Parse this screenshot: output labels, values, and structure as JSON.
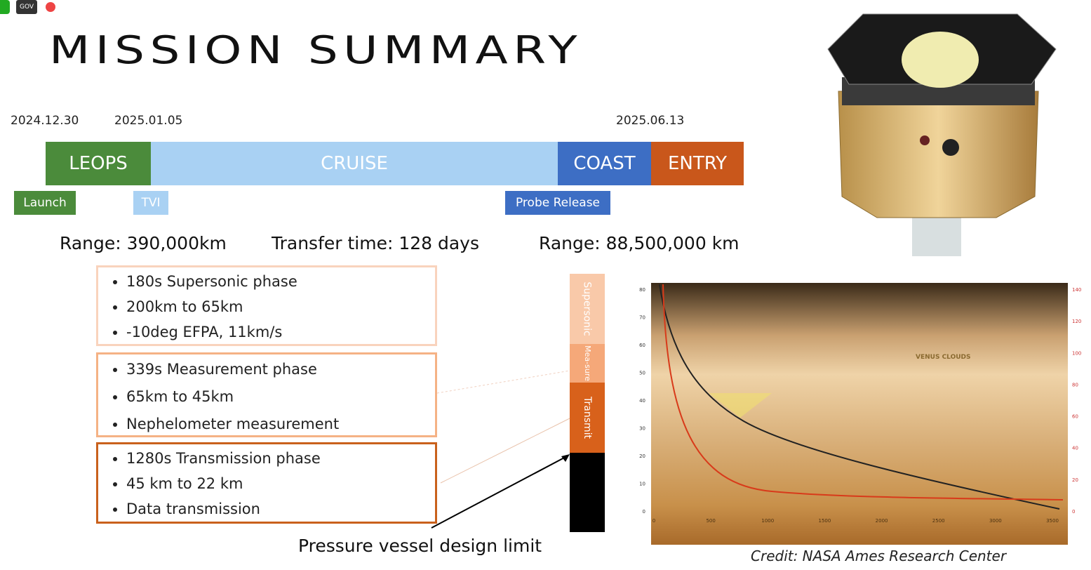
{
  "header": {
    "badge": "GOV",
    "title": "MISSION SUMMARY"
  },
  "timeline": {
    "dates": [
      "2024.12.30",
      "2025.01.05",
      "2025.06.13"
    ],
    "phases": [
      "LEOPS",
      "CRUISE",
      "COAST",
      "ENTRY"
    ],
    "events": [
      "Launch",
      "TVI",
      "Probe Release"
    ],
    "stats": [
      "Range: 390,000km",
      "Transfer time: 128 days",
      "Range: 88,500,000 km"
    ]
  },
  "entry_phases": [
    {
      "items": [
        "180s Supersonic phase",
        "200km to 65km",
        "-10deg EFPA, 11km/s"
      ]
    },
    {
      "items": [
        "339s Measurement phase",
        "65km to 45km",
        "Nephelometer measurement"
      ]
    },
    {
      "items": [
        "1280s Transmission phase",
        "45 km to 22 km",
        "Data transmission"
      ]
    }
  ],
  "phase_column": [
    "Supersonic",
    "Mea-sure",
    "Transmit"
  ],
  "descent_plot": {
    "cloud_label": "VENUS CLOUDS",
    "altitude_ticks": [
      "80",
      "70",
      "60",
      "50",
      "40",
      "30",
      "20",
      "10",
      "0"
    ],
    "velocity_ticks": [
      "140",
      "120",
      "100",
      "80",
      "60",
      "40",
      "20",
      "0"
    ],
    "time_ticks": [
      "0",
      "500",
      "1000",
      "1500",
      "2000",
      "2500",
      "3000",
      "3500"
    ]
  },
  "caption": "Pressure vessel design limit",
  "credit": "Credit: NASA Ames Research Center"
}
